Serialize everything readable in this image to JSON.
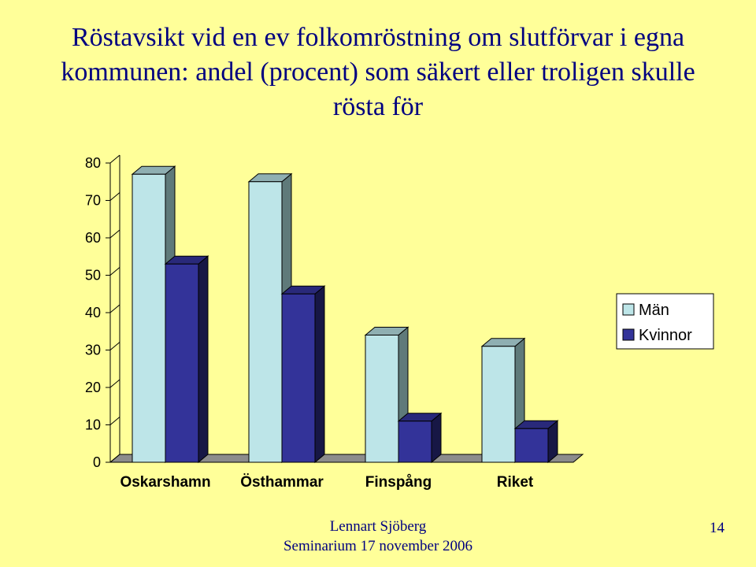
{
  "slide": {
    "title": "Röstavsikt vid en ev folkomröstning om slutförvar i egna kommunen: andel (procent) som säkert eller troligen skulle rösta för",
    "footer_author": "Lennart Sjöberg",
    "footer_event": "Seminarium 17 november 2006",
    "page_number": "14"
  },
  "chart_data": {
    "type": "bar",
    "title": "",
    "xlabel": "",
    "ylabel": "",
    "categories": [
      "Oskarshamn",
      "Östhammar",
      "Finspång",
      "Riket"
    ],
    "series": [
      {
        "name": "Män",
        "values": [
          77,
          75,
          34,
          31
        ],
        "color": "#BDE5E8"
      },
      {
        "name": "Kvinnor",
        "values": [
          53,
          45,
          11,
          9
        ],
        "color": "#333399"
      }
    ],
    "ylim": [
      0,
      80
    ],
    "yticks": [
      "0",
      "10",
      "20",
      "30",
      "40",
      "50",
      "60",
      "70",
      "80"
    ],
    "grid": false,
    "legend": "right",
    "style": "3d-clustered-column"
  }
}
